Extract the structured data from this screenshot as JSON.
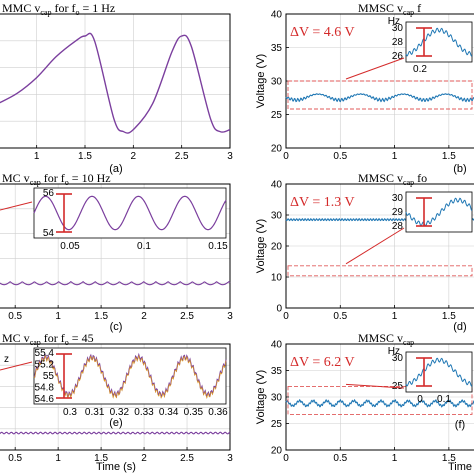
{
  "chart_data": [
    {
      "panel": "(a)",
      "type": "line",
      "title": "MMC v",
      "title_sub": "cap",
      "title_rest": " for f",
      "title_sub2": "o",
      "title_end": " = 1 Hz",
      "xlim": [
        0.6,
        3
      ],
      "xticks": [
        "1",
        "1.5",
        "2",
        "2.5",
        "3"
      ],
      "xtick_values": [
        1,
        1.5,
        2,
        2.5,
        3
      ],
      "series_color": "#7b3f9e",
      "x": [
        0.6,
        0.8,
        1.0,
        1.2,
        1.4,
        1.5,
        1.6,
        1.8,
        1.9,
        2.0,
        2.2,
        2.4,
        2.5,
        2.6,
        2.8,
        2.9,
        3.0
      ],
      "y": [
        0.35,
        0.45,
        0.6,
        0.8,
        0.95,
        1.0,
        0.95,
        0.2,
        0.08,
        0.1,
        0.35,
        0.85,
        1.0,
        0.9,
        0.2,
        0.08,
        0.1
      ]
    },
    {
      "panel": "(b)",
      "type": "line",
      "title": "MMSC v",
      "title_sub": "cap",
      "title_rest": " f",
      "ylabel": "Voltage (V)",
      "ylim": [
        20,
        40
      ],
      "yticks": [
        "20",
        "25",
        "30",
        "35",
        "40"
      ],
      "xticks": [
        "0",
        "0.5",
        "1",
        "1.5"
      ],
      "xtick_values": [
        0,
        0.5,
        1,
        1.5
      ],
      "xlim": [
        0,
        1.75
      ],
      "dv": "ΔV = 4.6 V",
      "series_color": "#1f77b4",
      "inset_yticks": [
        "26",
        "28",
        "30"
      ],
      "inset_xticks": [
        "0.2"
      ],
      "inset_label": "Hz"
    },
    {
      "panel": "(c)",
      "type": "line",
      "title": "MC v",
      "title_sub": "cap",
      "title_rest": " for f",
      "title_sub2": "o",
      "title_end": " = 10 Hz",
      "xticks": [
        "0.5",
        "1",
        "1.5",
        "2",
        "2.5",
        "3"
      ],
      "xtick_values": [
        0.5,
        1,
        1.5,
        2,
        2.5,
        3
      ],
      "xlim": [
        0.3,
        3
      ],
      "series_color": "#7b3f9e",
      "inset_yticks": [
        "54",
        "56"
      ],
      "inset_xticks": [
        "0.05",
        "0.1",
        "0.15"
      ]
    },
    {
      "panel": "(d)",
      "type": "line",
      "title": "MMSC v",
      "title_sub": "cap",
      "title_rest": " fo",
      "ylabel": "Voltage (V)",
      "ylim": [
        0,
        40
      ],
      "yticks": [
        "0",
        "10",
        "20",
        "30",
        "40"
      ],
      "xticks": [
        "0",
        "0.5",
        "1",
        "1.5"
      ],
      "xtick_values": [
        0,
        0.5,
        1,
        1.5
      ],
      "xlim": [
        0,
        1.75
      ],
      "dv": "ΔV = 1.3 V",
      "series_color": "#1f77b4",
      "inset_yticks": [
        "28",
        "29",
        "30"
      ]
    },
    {
      "panel": "(e)",
      "type": "line",
      "title": "MC v",
      "title_sub": "cap",
      "title_rest": " for f",
      "title_sub2": "o",
      "title_end": " = 45",
      "xlabel": "Time (s)",
      "xticks": [
        "0.5",
        "1",
        "1.5",
        "2",
        "2.5",
        "3"
      ],
      "xtick_values": [
        0.5,
        1,
        1.5,
        2,
        2.5,
        3
      ],
      "xlim": [
        0.3,
        3
      ],
      "series_color": "#7b3f9e",
      "inset_yticks": [
        "54.6",
        "54.8",
        "55",
        "55.2",
        "55.4"
      ],
      "inset_xticks": [
        "0.3",
        "0.31",
        "0.32",
        "0.33",
        "0.34",
        "0.35",
        "0.36"
      ],
      "inset_label": "z"
    },
    {
      "panel": "(f)",
      "type": "line",
      "title": "MMSC v",
      "title_sub": "cap",
      "title_rest": " ",
      "ylabel": "Voltage (V)",
      "xlabel": "Time",
      "ylim": [
        20,
        40
      ],
      "yticks": [
        "20",
        "25",
        "30",
        "35",
        "40"
      ],
      "xticks": [
        "0",
        "0.5",
        "1",
        "1.5"
      ],
      "xtick_values": [
        0,
        0.5,
        1,
        1.5
      ],
      "xlim": [
        0,
        1.75
      ],
      "dv": "ΔV = 6.2 V",
      "series_color": "#1f77b4",
      "inset_yticks": [
        "25",
        "30"
      ],
      "inset_xticks": [
        "0",
        "0.1"
      ],
      "inset_label": "Hz"
    }
  ]
}
